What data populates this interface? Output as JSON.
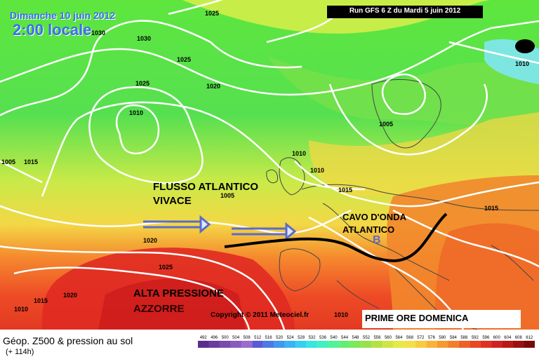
{
  "header": {
    "date": "Dimanche 10 juin 2012",
    "time": "2:00 locale",
    "run": "Run GFS 6 Z du Mardi 5 juin 2012"
  },
  "annotations": {
    "flow_line1": "FLUSSO ATLANTICO",
    "flow_line2": "VIVACE",
    "trough_line1": "CAVO D'ONDA",
    "trough_line2": "ATLANTICO",
    "low_marker": "B",
    "high_line1": "ALTA PRESSIONE",
    "high_line2": "AZZORRE",
    "prime_ore": "PRIME ORE DOMENICA",
    "copyright": "Copyright © 2011 Meteociel.fr"
  },
  "isobars": [
    {
      "label": "1025",
      "id": "i1"
    },
    {
      "label": "1030",
      "id": "i2"
    },
    {
      "label": "1030",
      "id": "i3"
    },
    {
      "label": "1025",
      "id": "i4"
    },
    {
      "label": "1025",
      "id": "i5"
    },
    {
      "label": "1020",
      "id": "i6"
    },
    {
      "label": "1010",
      "id": "i7"
    },
    {
      "label": "1010",
      "id": "i8"
    },
    {
      "label": "1005",
      "id": "i9"
    },
    {
      "label": "1005",
      "id": "i10"
    },
    {
      "label": "1015",
      "id": "i11"
    },
    {
      "label": "1005",
      "id": "i12"
    },
    {
      "label": "1010",
      "id": "i13"
    },
    {
      "label": "1015",
      "id": "i14"
    },
    {
      "label": "1015",
      "id": "i15"
    },
    {
      "label": "1020",
      "id": "i16"
    },
    {
      "label": "1025",
      "id": "i17"
    },
    {
      "label": "1015",
      "id": "i18"
    },
    {
      "label": "1020",
      "id": "i19"
    },
    {
      "label": "1010",
      "id": "i20"
    },
    {
      "label": "1010",
      "id": "i21"
    },
    {
      "label": "1010",
      "id": "i22"
    }
  ],
  "legend": {
    "title": "Géop. Z500 & pression au sol",
    "subtitle": "(+ 114h)",
    "scale_values": [
      "492",
      "496",
      "500",
      "504",
      "508",
      "512",
      "516",
      "520",
      "524",
      "528",
      "532",
      "536",
      "540",
      "544",
      "548",
      "552",
      "556",
      "560",
      "564",
      "568",
      "572",
      "576",
      "580",
      "584",
      "588",
      "592",
      "596",
      "600",
      "604",
      "608",
      "612"
    ],
    "scale_colors": [
      "#5a2d8c",
      "#6a3c9c",
      "#7b4bac",
      "#8a5bbd",
      "#9a6ccb",
      "#5a5ad6",
      "#4a7ae6",
      "#3f97f0",
      "#38b4f5",
      "#34d0f2",
      "#36e6e0",
      "#40f0c0",
      "#50f29a",
      "#62ee72",
      "#7ce85a",
      "#98e04c",
      "#b4e244",
      "#cfe642",
      "#e6ea44",
      "#f3e046",
      "#f7cc40",
      "#f7b438",
      "#f59a30",
      "#f27e2a",
      "#ee6226",
      "#e84824",
      "#df3222",
      "#d02222",
      "#b81818",
      "#9a1010",
      "#7a0a0a"
    ]
  }
}
